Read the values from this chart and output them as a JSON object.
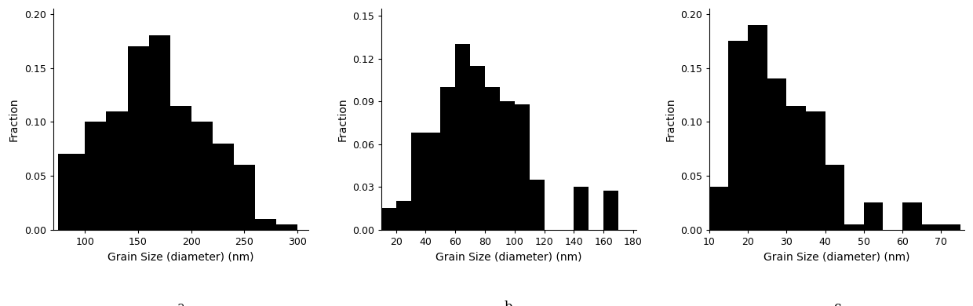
{
  "charts": [
    {
      "label": "a",
      "bin_edges": [
        75,
        100,
        120,
        140,
        160,
        180,
        200,
        220,
        240,
        260,
        280,
        300
      ],
      "fractions": [
        0.07,
        0.1,
        0.11,
        0.17,
        0.18,
        0.115,
        0.1,
        0.08,
        0.06,
        0.01,
        0.005
      ],
      "xlim": [
        70,
        310
      ],
      "ylim": [
        0,
        0.205
      ],
      "xticks": [
        100,
        150,
        200,
        250,
        300
      ],
      "yticks": [
        0.0,
        0.05,
        0.1,
        0.15,
        0.2
      ],
      "xlabel": "Grain Size (diameter) (nm)",
      "ylabel": "Fraction"
    },
    {
      "label": "b",
      "bin_edges": [
        10,
        20,
        30,
        40,
        50,
        60,
        70,
        80,
        90,
        100,
        110,
        120,
        130,
        140,
        150,
        160,
        170,
        180
      ],
      "fractions": [
        0.015,
        0.02,
        0.068,
        0.068,
        0.1,
        0.13,
        0.115,
        0.1,
        0.09,
        0.088,
        0.035,
        0.0,
        0.0,
        0.03,
        0.0,
        0.027,
        0.0
      ],
      "xlim": [
        10,
        182
      ],
      "ylim": [
        0,
        0.155
      ],
      "xticks": [
        20,
        40,
        60,
        80,
        100,
        120,
        140,
        160,
        180
      ],
      "yticks": [
        0.0,
        0.03,
        0.06,
        0.09,
        0.12,
        0.15
      ],
      "xlabel": "Grain Size (diameter) (nm)",
      "ylabel": "Fraction"
    },
    {
      "label": "c",
      "bin_edges": [
        10,
        15,
        20,
        25,
        30,
        35,
        40,
        45,
        50,
        55,
        60,
        65,
        70,
        75
      ],
      "fractions": [
        0.04,
        0.175,
        0.19,
        0.14,
        0.115,
        0.11,
        0.06,
        0.005,
        0.025,
        0.0,
        0.025,
        0.005,
        0.005
      ],
      "xlim": [
        10,
        76
      ],
      "ylim": [
        0,
        0.205
      ],
      "xticks": [
        10,
        20,
        30,
        40,
        50,
        60,
        70
      ],
      "yticks": [
        0.0,
        0.05,
        0.1,
        0.15,
        0.2
      ],
      "xlabel": "Grain Size (diameter) (nm)",
      "ylabel": "Fraction"
    }
  ],
  "bar_color": "#000000",
  "background_color": "#ffffff",
  "label_fontsize": 10,
  "tick_fontsize": 9,
  "subplot_label_fontsize": 12
}
